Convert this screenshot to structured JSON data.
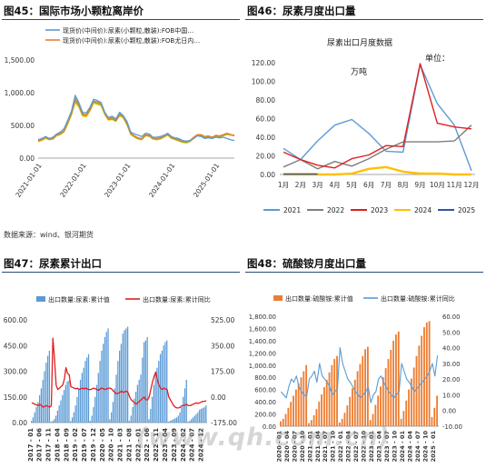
{
  "panel45": {
    "title": "图45：国际市场小颗粒离岸价"
  },
  "panel46": {
    "title": "图46：尿素月度出口量"
  },
  "panel47": {
    "title": "图47：尿素累计出口"
  },
  "panel48": {
    "title": "图48：硫酸铵月度出口量"
  },
  "source": "数据来源：wind、银河期货",
  "watermark": "(www.qh.com.cn)",
  "chart_data": [
    {
      "type": "line",
      "title": "",
      "ylim": [
        0,
        1500
      ],
      "yticks": [
        "1,500.00",
        "1,000.00",
        "500.00",
        "0.00"
      ],
      "xticks": [
        "2021-01-01",
        "2022-01-01",
        "2023-01-01",
        "2024-01-01",
        "2025-01-01"
      ],
      "x_start": "2020-12",
      "x_end": "2025-05",
      "legend": [
        "现货价(中间价):尿素(小颗粒,散装):FOB中国…",
        "现货价(中间价):尿素(小颗粒,散装):FOB尤日内…"
      ],
      "legend_position": "top",
      "colors": [
        "#5b9bd5",
        "#ed7d31",
        "#70ad47",
        "#ffc000"
      ],
      "series": [
        {
          "name": "现货价(中间价):尿素(小颗粒,散装):FOB中国…",
          "values": [
            280,
            300,
            330,
            300,
            320,
            370,
            400,
            450,
            580,
            720,
            960,
            850,
            700,
            690,
            780,
            900,
            880,
            850,
            700,
            620,
            640,
            600,
            700,
            650,
            560,
            400,
            370,
            350,
            330,
            380,
            370,
            320,
            320,
            330,
            350,
            380,
            330,
            310,
            300,
            270,
            260,
            270,
            300,
            340,
            330,
            300,
            310,
            300,
            320,
            310,
            320,
            300,
            280,
            270
          ]
        },
        {
          "name": "现货价(中间价):尿素(小颗粒,散装):FOB尤日内…",
          "values": [
            270,
            290,
            320,
            290,
            310,
            360,
            380,
            420,
            560,
            700,
            920,
            820,
            680,
            660,
            760,
            870,
            860,
            830,
            690,
            600,
            620,
            580,
            680,
            640,
            540,
            380,
            340,
            310,
            300,
            360,
            350,
            310,
            300,
            310,
            340,
            370,
            320,
            300,
            280,
            260,
            250,
            270,
            320,
            360,
            360,
            330,
            340,
            320,
            350,
            340,
            360,
            380,
            360,
            340
          ]
        },
        {
          "name": "series-3",
          "values": [
            260,
            285,
            315,
            285,
            300,
            350,
            370,
            410,
            540,
            680,
            880,
            800,
            660,
            650,
            740,
            860,
            840,
            820,
            680,
            590,
            600,
            570,
            660,
            630,
            520,
            370,
            330,
            300,
            290,
            350,
            340,
            300,
            290,
            300,
            330,
            360,
            310,
            290,
            270,
            250,
            240,
            260,
            310,
            350,
            350,
            320,
            330,
            320,
            340,
            330,
            350,
            370,
            360,
            350
          ]
        },
        {
          "name": "series-4",
          "values": [
            250,
            270,
            300,
            280,
            290,
            340,
            360,
            400,
            520,
            660,
            850,
            780,
            640,
            630,
            720,
            840,
            820,
            800,
            660,
            580,
            590,
            560,
            650,
            610,
            510,
            360,
            320,
            290,
            280,
            340,
            330,
            290,
            280,
            290,
            320,
            350,
            300,
            280,
            260,
            240,
            230,
            250,
            300,
            340,
            340,
            310,
            320,
            310,
            330,
            320,
            340,
            360,
            350,
            345
          ]
        }
      ]
    },
    {
      "type": "line",
      "title": "尿素出口月度数据",
      "unit_label": "单位：",
      "unit_value": "万吨",
      "categories": [
        "1月",
        "2月",
        "3月",
        "4月",
        "5月",
        "6月",
        "7月",
        "8月",
        "9月",
        "10月",
        "11月",
        "12月"
      ],
      "ylim": [
        0,
        120
      ],
      "yticks": [
        "120.00",
        "100.00",
        "80.00",
        "60.00",
        "40.00",
        "20.00",
        "0.00"
      ],
      "legend_position": "bottom",
      "series": [
        {
          "name": "2021",
          "color": "#5b9bd5",
          "values": [
            28,
            16,
            36,
            53,
            59,
            44,
            25,
            24,
            118,
            76,
            53,
            4
          ]
        },
        {
          "name": "2022",
          "color": "#7f7f7f",
          "values": [
            8,
            16,
            6,
            14,
            9,
            17,
            27,
            35,
            35,
            35,
            36,
            53
          ]
        },
        {
          "name": "2023",
          "color": "#e02020",
          "values": [
            24,
            16,
            10,
            7,
            17,
            21,
            31,
            30,
            119,
            55,
            51,
            49
          ]
        },
        {
          "name": "2024",
          "color": "#ffc000",
          "values": [
            0,
            0,
            0,
            0,
            1,
            6,
            8,
            3,
            1,
            1,
            0,
            0
          ]
        },
        {
          "name": "2025",
          "color": "#2f55a4",
          "values": [
            0.5,
            0.5,
            0.5,
            null,
            null,
            null,
            null,
            null,
            null,
            null,
            null,
            null
          ]
        }
      ]
    },
    {
      "type": "bar",
      "title": "",
      "legend": [
        "出口数量:尿素:累计值",
        "出口数量:尿素:累计同比"
      ],
      "legend_position": "top",
      "x_ticks": [
        "2017 - 01",
        "2017 - 06",
        "2017 - 11",
        "2018 - 04",
        "2018 - 09",
        "2019 - 02",
        "2019 - 07",
        "2019 - 12",
        "2020 - 05",
        "2020 - 10",
        "2021 - 03",
        "2021 - 08",
        "2022 - 01",
        "2022 - 06",
        "2022 - 11",
        "2023 - 04",
        "2023 - 09",
        "2024 - 02",
        "2024 - 07",
        "2024 - 12"
      ],
      "ylim_left": [
        0,
        600
      ],
      "ylim_right": [
        -175,
        525
      ],
      "yticks_left": [
        "600.00",
        "450.00",
        "300.00",
        "150.00",
        "0.00"
      ],
      "yticks_right": [
        "525.00",
        "350.00",
        "175.00",
        "0.00",
        "-175.00"
      ],
      "bars": {
        "name": "出口数量:尿素:累计值",
        "color": "#5b9bd5",
        "values": [
          10,
          30,
          60,
          90,
          120,
          160,
          200,
          250,
          300,
          350,
          390,
          420,
          5,
          10,
          20,
          40,
          70,
          100,
          130,
          160,
          190,
          220,
          240,
          245,
          8,
          30,
          60,
          100,
          150,
          200,
          250,
          290,
          320,
          360,
          380,
          400,
          10,
          40,
          90,
          150,
          220,
          290,
          360,
          420,
          460,
          500,
          530,
          550,
          20,
          60,
          120,
          200,
          280,
          360,
          420,
          460,
          520,
          540,
          550,
          560,
          10,
          40,
          90,
          140,
          180,
          220,
          250,
          280,
          380,
          470,
          480,
          500,
          20,
          80,
          150,
          220,
          280,
          320,
          360,
          400,
          420,
          450,
          470,
          480,
          5,
          10,
          15,
          20,
          25,
          30,
          40,
          60,
          90,
          150,
          200,
          250,
          5,
          10,
          20,
          30,
          40,
          50,
          60,
          75,
          80,
          85,
          90,
          100
        ]
      },
      "line": {
        "name": "出口数量:尿素:累计同比",
        "color": "#e02020",
        "values": [
          -40,
          -45,
          -50,
          -55,
          -60,
          -50,
          -60,
          -70,
          -65,
          -60,
          -65,
          -70,
          -60,
          400,
          260,
          80,
          50,
          60,
          70,
          80,
          120,
          200,
          160,
          150,
          70,
          65,
          60,
          55,
          60,
          50,
          55,
          60,
          55,
          60,
          55,
          50,
          50,
          55,
          60,
          55,
          50,
          45,
          55,
          60,
          55,
          50,
          55,
          60,
          60,
          55,
          40,
          30,
          20,
          25,
          30,
          40,
          30,
          35,
          40,
          30,
          0,
          -20,
          -30,
          -40,
          -50,
          -40,
          -30,
          -20,
          -10,
          0,
          -20,
          -20,
          0,
          50,
          100,
          140,
          170,
          120,
          80,
          60,
          50,
          60,
          55,
          50,
          0,
          -20,
          -40,
          -60,
          -70,
          -75,
          -75,
          -70,
          -60,
          -60,
          -55,
          -50,
          -60,
          -60,
          -55,
          -50,
          -45,
          -40,
          -45,
          -40,
          -35,
          -30,
          -30,
          -25
        ]
      }
    },
    {
      "type": "bar",
      "title": "",
      "legend": [
        "出口数量:硫酸铵:累计值",
        "出口数量:硫酸铵:累计同比"
      ],
      "legend_position": "top",
      "x_ticks": [
        "2020 - 01",
        "2020 - 04",
        "2020 - 07",
        "2020 - 10",
        "2021 - 01",
        "2021 - 04",
        "2021 - 07",
        "2021 - 10",
        "2022 - 01",
        "2022 - 04",
        "2022 - 07",
        "2022 - 10",
        "2023 - 01",
        "2023 - 04",
        "2023 - 07",
        "2023 - 10",
        "2024 - 01",
        "2024 - 04",
        "2024 - 07",
        "2024 - 10",
        "2025 - 01"
      ],
      "ylim_left": [
        0,
        1800
      ],
      "ylim_right": [
        -10,
        60
      ],
      "yticks_left": [
        "1,800.00",
        "1,600.00",
        "1,400.00",
        "1,200.00",
        "1,000.00",
        "800.00",
        "600.00",
        "400.00",
        "200.00",
        "0.00"
      ],
      "yticks_right": [
        "60.00",
        "50.00",
        "40.00",
        "30.00",
        "20.00",
        "10.00",
        "0.00",
        "-10.00"
      ],
      "bars": {
        "name": "出口数量:硫酸铵:累计值",
        "color": "#ed7d31",
        "values": [
          80,
          120,
          200,
          300,
          400,
          500,
          600,
          700,
          800,
          900,
          1000,
          50,
          100,
          180,
          280,
          400,
          520,
          640,
          760,
          880,
          1000,
          1100,
          1150,
          60,
          120,
          220,
          340,
          480,
          620,
          760,
          900,
          1020,
          1150,
          1260,
          1300,
          100,
          200,
          350,
          500,
          650,
          800,
          950,
          1100,
          1250,
          1400,
          1500,
          1550,
          120,
          250,
          420,
          600,
          780,
          960,
          1150,
          1320,
          1480,
          1620,
          1700,
          1720,
          150,
          300,
          500
        ]
      },
      "line": {
        "name": "出口数量:硫酸铵:累计同比",
        "color": "#5b9bd5",
        "values": [
          12,
          10,
          8,
          15,
          20,
          18,
          22,
          15,
          12,
          10,
          9,
          20,
          22,
          25,
          18,
          30,
          22,
          20,
          18,
          15,
          10,
          12,
          14,
          40,
          30,
          25,
          20,
          18,
          15,
          12,
          10,
          8,
          10,
          12,
          15,
          5,
          10,
          12,
          20,
          22,
          18,
          15,
          12,
          10,
          8,
          10,
          12,
          30,
          25,
          20,
          18,
          15,
          12,
          14,
          16,
          18,
          20,
          22,
          25,
          30,
          22,
          35
        ]
      }
    }
  ]
}
